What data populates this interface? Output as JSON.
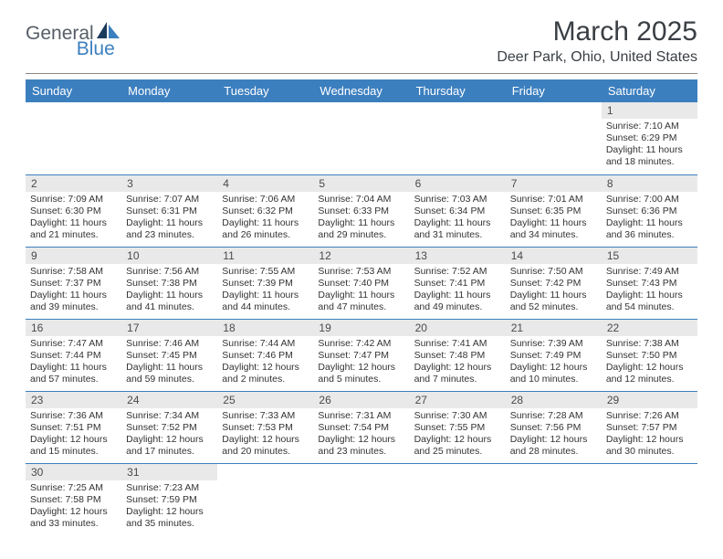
{
  "logo": {
    "part1": "General",
    "part2": "Blue",
    "color1": "#555d66",
    "color2": "#3c7fbf"
  },
  "title": "March 2025",
  "location": "Deer Park, Ohio, United States",
  "colors": {
    "header_bg": "#3c7fbf",
    "daynum_bg": "#e9e9e9",
    "border": "#3c7fbf",
    "page_bg": "#ffffff"
  },
  "typography": {
    "title_fontsize": 30,
    "location_fontsize": 16,
    "dayheader_fontsize": 13,
    "daynum_fontsize": 12,
    "body_fontsize": 10.5
  },
  "days_of_week": [
    "Sunday",
    "Monday",
    "Tuesday",
    "Wednesday",
    "Thursday",
    "Friday",
    "Saturday"
  ],
  "weeks": [
    [
      null,
      null,
      null,
      null,
      null,
      null,
      {
        "n": "1",
        "sunrise": "7:10 AM",
        "sunset": "6:29 PM",
        "daylight": "11 hours and 18 minutes."
      }
    ],
    [
      {
        "n": "2",
        "sunrise": "7:09 AM",
        "sunset": "6:30 PM",
        "daylight": "11 hours and 21 minutes."
      },
      {
        "n": "3",
        "sunrise": "7:07 AM",
        "sunset": "6:31 PM",
        "daylight": "11 hours and 23 minutes."
      },
      {
        "n": "4",
        "sunrise": "7:06 AM",
        "sunset": "6:32 PM",
        "daylight": "11 hours and 26 minutes."
      },
      {
        "n": "5",
        "sunrise": "7:04 AM",
        "sunset": "6:33 PM",
        "daylight": "11 hours and 29 minutes."
      },
      {
        "n": "6",
        "sunrise": "7:03 AM",
        "sunset": "6:34 PM",
        "daylight": "11 hours and 31 minutes."
      },
      {
        "n": "7",
        "sunrise": "7:01 AM",
        "sunset": "6:35 PM",
        "daylight": "11 hours and 34 minutes."
      },
      {
        "n": "8",
        "sunrise": "7:00 AM",
        "sunset": "6:36 PM",
        "daylight": "11 hours and 36 minutes."
      }
    ],
    [
      {
        "n": "9",
        "sunrise": "7:58 AM",
        "sunset": "7:37 PM",
        "daylight": "11 hours and 39 minutes."
      },
      {
        "n": "10",
        "sunrise": "7:56 AM",
        "sunset": "7:38 PM",
        "daylight": "11 hours and 41 minutes."
      },
      {
        "n": "11",
        "sunrise": "7:55 AM",
        "sunset": "7:39 PM",
        "daylight": "11 hours and 44 minutes."
      },
      {
        "n": "12",
        "sunrise": "7:53 AM",
        "sunset": "7:40 PM",
        "daylight": "11 hours and 47 minutes."
      },
      {
        "n": "13",
        "sunrise": "7:52 AM",
        "sunset": "7:41 PM",
        "daylight": "11 hours and 49 minutes."
      },
      {
        "n": "14",
        "sunrise": "7:50 AM",
        "sunset": "7:42 PM",
        "daylight": "11 hours and 52 minutes."
      },
      {
        "n": "15",
        "sunrise": "7:49 AM",
        "sunset": "7:43 PM",
        "daylight": "11 hours and 54 minutes."
      }
    ],
    [
      {
        "n": "16",
        "sunrise": "7:47 AM",
        "sunset": "7:44 PM",
        "daylight": "11 hours and 57 minutes."
      },
      {
        "n": "17",
        "sunrise": "7:46 AM",
        "sunset": "7:45 PM",
        "daylight": "11 hours and 59 minutes."
      },
      {
        "n": "18",
        "sunrise": "7:44 AM",
        "sunset": "7:46 PM",
        "daylight": "12 hours and 2 minutes."
      },
      {
        "n": "19",
        "sunrise": "7:42 AM",
        "sunset": "7:47 PM",
        "daylight": "12 hours and 5 minutes."
      },
      {
        "n": "20",
        "sunrise": "7:41 AM",
        "sunset": "7:48 PM",
        "daylight": "12 hours and 7 minutes."
      },
      {
        "n": "21",
        "sunrise": "7:39 AM",
        "sunset": "7:49 PM",
        "daylight": "12 hours and 10 minutes."
      },
      {
        "n": "22",
        "sunrise": "7:38 AM",
        "sunset": "7:50 PM",
        "daylight": "12 hours and 12 minutes."
      }
    ],
    [
      {
        "n": "23",
        "sunrise": "7:36 AM",
        "sunset": "7:51 PM",
        "daylight": "12 hours and 15 minutes."
      },
      {
        "n": "24",
        "sunrise": "7:34 AM",
        "sunset": "7:52 PM",
        "daylight": "12 hours and 17 minutes."
      },
      {
        "n": "25",
        "sunrise": "7:33 AM",
        "sunset": "7:53 PM",
        "daylight": "12 hours and 20 minutes."
      },
      {
        "n": "26",
        "sunrise": "7:31 AM",
        "sunset": "7:54 PM",
        "daylight": "12 hours and 23 minutes."
      },
      {
        "n": "27",
        "sunrise": "7:30 AM",
        "sunset": "7:55 PM",
        "daylight": "12 hours and 25 minutes."
      },
      {
        "n": "28",
        "sunrise": "7:28 AM",
        "sunset": "7:56 PM",
        "daylight": "12 hours and 28 minutes."
      },
      {
        "n": "29",
        "sunrise": "7:26 AM",
        "sunset": "7:57 PM",
        "daylight": "12 hours and 30 minutes."
      }
    ],
    [
      {
        "n": "30",
        "sunrise": "7:25 AM",
        "sunset": "7:58 PM",
        "daylight": "12 hours and 33 minutes."
      },
      {
        "n": "31",
        "sunrise": "7:23 AM",
        "sunset": "7:59 PM",
        "daylight": "12 hours and 35 minutes."
      },
      null,
      null,
      null,
      null,
      null
    ]
  ],
  "labels": {
    "sunrise": "Sunrise:",
    "sunset": "Sunset:",
    "daylight": "Daylight:"
  }
}
